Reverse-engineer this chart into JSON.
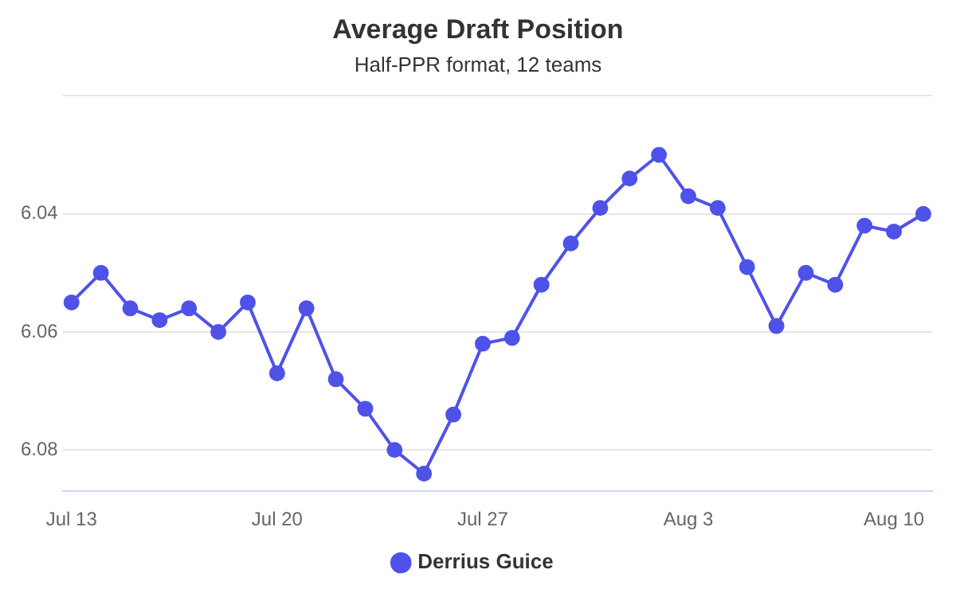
{
  "chart_data": {
    "type": "line",
    "title": "Average Draft Position",
    "subtitle": "Half-PPR format, 12 teams",
    "x": [
      "--07-13",
      "--07-14",
      "--07-15",
      "--07-16",
      "--07-17",
      "--07-18",
      "--07-19",
      "--07-20",
      "--07-21",
      "--07-22",
      "--07-23",
      "--07-24",
      "--07-25",
      "--07-26",
      "--07-27",
      "--07-28",
      "--07-29",
      "--07-30",
      "--07-31",
      "--08-01",
      "--08-02",
      "--08-03",
      "--08-04",
      "--08-05",
      "--08-06",
      "--08-07",
      "--08-08",
      "--08-09",
      "--08-10",
      "--08-11"
    ],
    "series": [
      {
        "name": "Derrius Guice",
        "color": "#4f52e8",
        "values": [
          6.055,
          6.05,
          6.056,
          6.058,
          6.056,
          6.06,
          6.055,
          6.067,
          6.056,
          6.068,
          6.073,
          6.08,
          6.084,
          6.074,
          6.062,
          6.061,
          6.052,
          6.045,
          6.039,
          6.034,
          6.03,
          6.037,
          6.039,
          6.049,
          6.059,
          6.05,
          6.052,
          6.042,
          6.043,
          6.04
        ]
      }
    ],
    "xlim": [
      "--07-13",
      "--08-11"
    ],
    "xticks": [
      {
        "value": "--07-13",
        "label": "Jul 13"
      },
      {
        "value": "--07-20",
        "label": "Jul 20"
      },
      {
        "value": "--07-27",
        "label": "Jul 27"
      },
      {
        "value": "--08-03",
        "label": "Aug 3"
      },
      {
        "value": "--08-10",
        "label": "Aug 10"
      }
    ],
    "ylim": [
      6.087,
      6.02
    ],
    "yticks": [
      {
        "value": 6.02,
        "label": null
      },
      6.04,
      6.06,
      6.08
    ],
    "grid": "y",
    "legend": "bottom",
    "marker": "circle",
    "line_style": "solid"
  }
}
